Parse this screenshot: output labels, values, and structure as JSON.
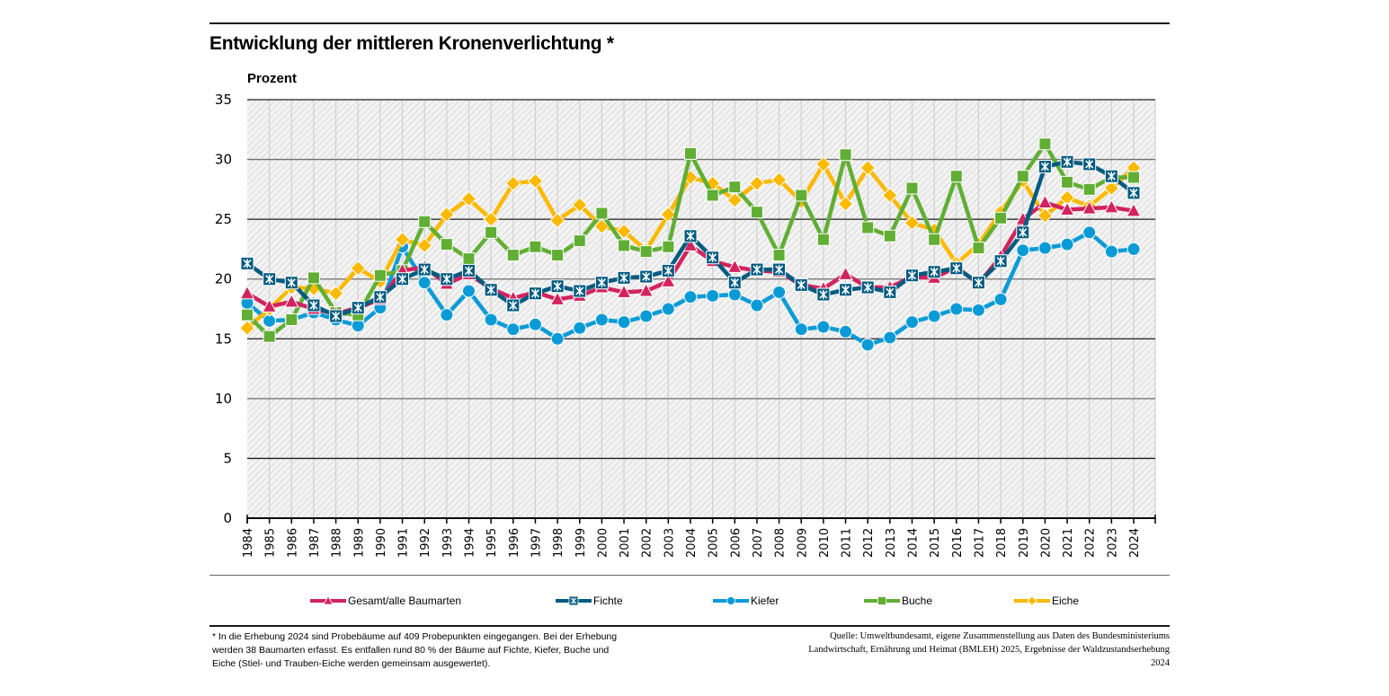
{
  "title": "Entwicklung der mittleren Kronenverlichtung *",
  "unit_label": "Prozent",
  "legend": [
    {
      "name": "Gesamt/alle Baumarten",
      "color": "#d2235f",
      "marker": "triangle"
    },
    {
      "name": "Fichte",
      "color": "#005b7f",
      "marker": "x-square"
    },
    {
      "name": "Kiefer",
      "color": "#0a9bd7",
      "marker": "circle"
    },
    {
      "name": "Buche",
      "color": "#61ae34",
      "marker": "square"
    },
    {
      "name": "Eiche",
      "color": "#fbb900",
      "marker": "diamond"
    }
  ],
  "footnote": "* In die Erhebung 2024 sind Probebäume auf 409 Probepunkten eingegangen. Bei der Erhebung werden 38 Baumarten erfasst. Es entfallen rund 80 % der Bäume auf Fichte, Kiefer, Buche und Eiche (Stiel- und Trauben-Eiche werden gemeinsam ausgewertet).",
  "source": "Quelle: Umweltbundesamt, eigene Zusammenstellung aus Daten des Bundesministeriums Landwirtschaft, Ernährung und Heimat (BMLEH) 2025, Ergebnisse der Waldzustandserhebung 2024",
  "chart_data": {
    "type": "line",
    "title": "Entwicklung der mittleren Kronenverlichtung *",
    "xlabel": "",
    "ylabel": "Prozent",
    "ylim": [
      0,
      35
    ],
    "yticks": [
      0,
      5,
      10,
      15,
      20,
      25,
      30,
      35
    ],
    "grid": true,
    "legend_position": "bottom",
    "x": [
      "1984",
      "1985",
      "1986",
      "1987",
      "1988",
      "1989",
      "1990",
      "1991",
      "1992",
      "1993",
      "1994",
      "1995",
      "1996",
      "1997",
      "1998",
      "1999",
      "2000",
      "2001",
      "2002",
      "2003",
      "2004",
      "2005",
      "2006",
      "2007",
      "2008",
      "2009",
      "2010",
      "2011",
      "2012",
      "2013",
      "2014",
      "2015",
      "2016",
      "2017",
      "2018",
      "2019",
      "2020",
      "2021",
      "2022",
      "2023",
      "2024"
    ],
    "series": [
      {
        "name": "Gesamt/alle Baumarten",
        "color": "#d2235f",
        "marker": "triangle",
        "values": [
          18.8,
          17.7,
          18.1,
          17.5,
          17.1,
          17.6,
          18.3,
          20.7,
          21.0,
          19.6,
          20.4,
          19.2,
          18.4,
          18.9,
          18.3,
          18.6,
          19.3,
          18.9,
          19.0,
          19.8,
          22.8,
          21.5,
          21.0,
          20.7,
          20.6,
          19.5,
          19.2,
          20.4,
          19.3,
          19.3,
          20.2,
          20.1,
          21.0,
          19.6,
          21.9,
          25.0,
          26.4,
          25.8,
          25.9,
          26.0,
          25.7
        ]
      },
      {
        "name": "Fichte",
        "color": "#005b7f",
        "marker": "x-square",
        "values": [
          21.3,
          20.0,
          19.7,
          17.8,
          16.9,
          17.6,
          18.5,
          20.0,
          20.8,
          20.0,
          20.7,
          19.1,
          17.8,
          18.8,
          19.4,
          19.0,
          19.7,
          20.1,
          20.2,
          20.7,
          23.6,
          21.8,
          19.7,
          20.8,
          20.8,
          19.5,
          18.7,
          19.1,
          19.3,
          18.9,
          20.3,
          20.6,
          20.9,
          19.7,
          21.5,
          23.9,
          29.4,
          29.8,
          29.6,
          28.6,
          27.2
        ]
      },
      {
        "name": "Kiefer",
        "color": "#0a9bd7",
        "marker": "circle",
        "values": [
          18.0,
          16.5,
          16.6,
          17.2,
          16.6,
          16.1,
          17.6,
          22.7,
          19.7,
          17.0,
          19.0,
          16.6,
          15.8,
          16.2,
          15.0,
          15.9,
          16.6,
          16.4,
          16.9,
          17.5,
          18.5,
          18.6,
          18.7,
          17.8,
          18.9,
          15.8,
          16.0,
          15.6,
          14.5,
          15.1,
          16.4,
          16.9,
          17.5,
          17.4,
          18.3,
          22.4,
          22.6,
          22.9,
          23.9,
          22.3,
          22.5
        ]
      },
      {
        "name": "Buche",
        "color": "#61ae34",
        "marker": "square",
        "values": [
          17.0,
          15.2,
          16.6,
          20.1,
          17.2,
          17.0,
          20.3,
          20.7,
          24.8,
          22.9,
          21.7,
          23.9,
          22.0,
          22.7,
          22.0,
          23.2,
          25.5,
          22.8,
          22.3,
          22.7,
          30.5,
          27.0,
          27.7,
          25.6,
          22.0,
          27.0,
          23.3,
          30.4,
          24.3,
          23.6,
          27.6,
          23.3,
          28.6,
          22.6,
          25.1,
          28.6,
          31.3,
          28.1,
          27.5,
          28.5,
          28.5
        ]
      },
      {
        "name": "Eiche",
        "color": "#fbb900",
        "marker": "diamond",
        "values": [
          15.9,
          17.5,
          19.3,
          19.2,
          18.8,
          20.9,
          19.8,
          23.3,
          22.8,
          25.4,
          26.7,
          25.0,
          28.0,
          28.2,
          24.9,
          26.2,
          24.4,
          24.0,
          22.4,
          25.4,
          28.5,
          28.0,
          26.6,
          28.0,
          28.3,
          26.5,
          29.6,
          26.3,
          29.3,
          27.0,
          24.7,
          24.1,
          21.3,
          22.9,
          25.6,
          28.2,
          25.3,
          26.8,
          26.1,
          27.6,
          29.3
        ]
      }
    ]
  }
}
